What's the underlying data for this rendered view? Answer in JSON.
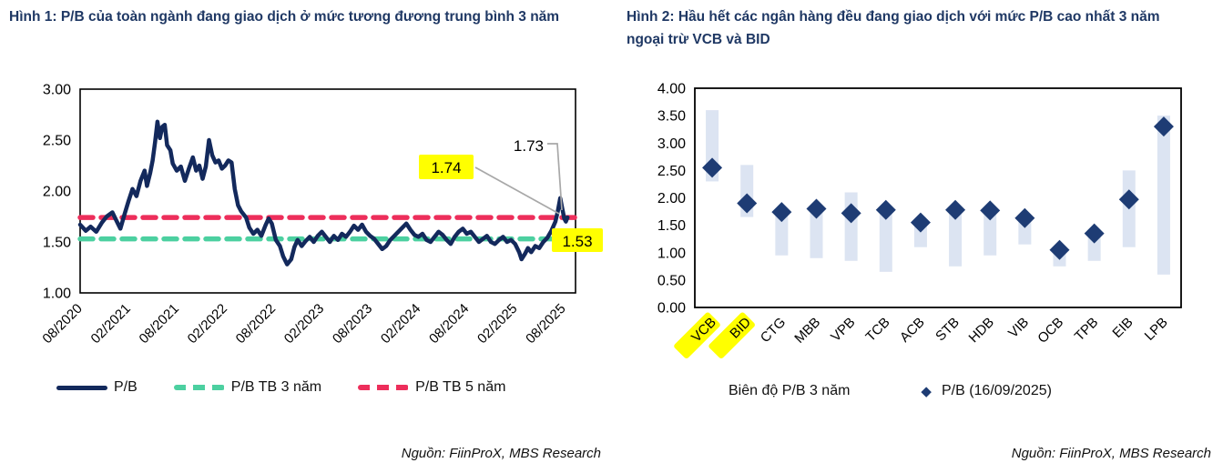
{
  "colors": {
    "title": "#1F3864",
    "pb_line": "#13295C",
    "diamond": "#1E3C74",
    "range_bar": "#DCE4F2",
    "avg3_green": "#4CD0A0",
    "avg5_red": "#ED2E5B",
    "highlight_yellow": "#FFFF00",
    "leader_gray": "#A8A8A8",
    "axis_text": "#000000",
    "plot_border": "#000000"
  },
  "figure1": {
    "title": "Hình 1: P/B của toàn ngành đang giao dịch ở mức tương đương trung bình 3 năm",
    "source": "Nguồn: FiinProX, MBS Research",
    "legend": [
      {
        "label": "P/B",
        "style": "solid-navy"
      },
      {
        "label": "P/B TB 3 năm",
        "style": "dashed-green"
      },
      {
        "label": "P/B TB 5 năm",
        "style": "dashed-red"
      }
    ],
    "annotations": {
      "end_value": "1.73",
      "avg5_value": "1.74",
      "avg3_value": "1.53"
    },
    "chart_data": {
      "type": "line",
      "title": "P/B toàn ngành ngân hàng",
      "x_unit": "months since 08/2020",
      "ylim": [
        1.0,
        3.0
      ],
      "y_tick_labels": [
        "1.00",
        "1.50",
        "2.00",
        "2.50",
        "3.00"
      ],
      "x_ticks": [
        {
          "label": "08/2020",
          "m": 0
        },
        {
          "label": "02/2021",
          "m": 6
        },
        {
          "label": "08/2021",
          "m": 12
        },
        {
          "label": "02/2022",
          "m": 18
        },
        {
          "label": "08/2022",
          "m": 24
        },
        {
          "label": "02/2023",
          "m": 30
        },
        {
          "label": "08/2023",
          "m": 36
        },
        {
          "label": "02/2024",
          "m": 42
        },
        {
          "label": "08/2024",
          "m": 48
        },
        {
          "label": "02/2025",
          "m": 54
        },
        {
          "label": "08/2025",
          "m": 60
        }
      ],
      "avg_3y": 1.53,
      "avg_5y": 1.74,
      "pb_end": 1.73,
      "series": [
        {
          "name": "P/B",
          "points": [
            [
              0,
              1.67
            ],
            [
              0.7,
              1.61
            ],
            [
              1.3,
              1.65
            ],
            [
              2,
              1.6
            ],
            [
              2.7,
              1.69
            ],
            [
              3.3,
              1.75
            ],
            [
              4,
              1.79
            ],
            [
              4.5,
              1.71
            ],
            [
              5,
              1.63
            ],
            [
              5.5,
              1.77
            ],
            [
              6,
              1.9
            ],
            [
              6.5,
              2.02
            ],
            [
              7,
              1.95
            ],
            [
              7.5,
              2.1
            ],
            [
              8,
              2.2
            ],
            [
              8.3,
              2.05
            ],
            [
              8.7,
              2.18
            ],
            [
              9,
              2.3
            ],
            [
              9.3,
              2.48
            ],
            [
              9.6,
              2.68
            ],
            [
              9.9,
              2.52
            ],
            [
              10.2,
              2.63
            ],
            [
              10.5,
              2.65
            ],
            [
              10.8,
              2.45
            ],
            [
              11.2,
              2.4
            ],
            [
              11.5,
              2.27
            ],
            [
              12,
              2.2
            ],
            [
              12.5,
              2.24
            ],
            [
              13,
              2.1
            ],
            [
              13.5,
              2.22
            ],
            [
              14,
              2.33
            ],
            [
              14.4,
              2.2
            ],
            [
              14.8,
              2.25
            ],
            [
              15.2,
              2.12
            ],
            [
              15.6,
              2.24
            ],
            [
              16,
              2.5
            ],
            [
              16.4,
              2.35
            ],
            [
              16.8,
              2.28
            ],
            [
              17.2,
              2.3
            ],
            [
              17.6,
              2.22
            ],
            [
              18,
              2.25
            ],
            [
              18.4,
              2.3
            ],
            [
              18.8,
              2.28
            ],
            [
              19.2,
              2.02
            ],
            [
              19.6,
              1.86
            ],
            [
              20,
              1.8
            ],
            [
              20.6,
              1.74
            ],
            [
              21,
              1.64
            ],
            [
              21.5,
              1.58
            ],
            [
              22,
              1.62
            ],
            [
              22.5,
              1.56
            ],
            [
              23,
              1.66
            ],
            [
              23.4,
              1.73
            ],
            [
              23.8,
              1.68
            ],
            [
              24.3,
              1.52
            ],
            [
              24.8,
              1.46
            ],
            [
              25.2,
              1.36
            ],
            [
              25.7,
              1.28
            ],
            [
              26.2,
              1.33
            ],
            [
              26.6,
              1.45
            ],
            [
              27,
              1.52
            ],
            [
              27.5,
              1.46
            ],
            [
              28,
              1.51
            ],
            [
              28.5,
              1.55
            ],
            [
              29,
              1.5
            ],
            [
              29.5,
              1.56
            ],
            [
              30,
              1.6
            ],
            [
              30.5,
              1.55
            ],
            [
              31,
              1.5
            ],
            [
              31.5,
              1.56
            ],
            [
              32,
              1.52
            ],
            [
              32.5,
              1.58
            ],
            [
              33,
              1.55
            ],
            [
              33.5,
              1.6
            ],
            [
              34,
              1.66
            ],
            [
              34.5,
              1.62
            ],
            [
              35,
              1.67
            ],
            [
              35.5,
              1.6
            ],
            [
              36,
              1.56
            ],
            [
              36.5,
              1.53
            ],
            [
              37,
              1.48
            ],
            [
              37.5,
              1.43
            ],
            [
              38,
              1.46
            ],
            [
              38.5,
              1.52
            ],
            [
              39,
              1.56
            ],
            [
              39.5,
              1.6
            ],
            [
              40,
              1.64
            ],
            [
              40.5,
              1.68
            ],
            [
              41,
              1.62
            ],
            [
              41.5,
              1.57
            ],
            [
              42,
              1.55
            ],
            [
              42.5,
              1.58
            ],
            [
              43,
              1.52
            ],
            [
              43.5,
              1.5
            ],
            [
              44,
              1.55
            ],
            [
              44.5,
              1.6
            ],
            [
              45,
              1.57
            ],
            [
              45.5,
              1.52
            ],
            [
              46,
              1.48
            ],
            [
              46.5,
              1.55
            ],
            [
              47,
              1.6
            ],
            [
              47.5,
              1.63
            ],
            [
              48,
              1.58
            ],
            [
              48.5,
              1.6
            ],
            [
              49,
              1.55
            ],
            [
              49.5,
              1.5
            ],
            [
              50,
              1.53
            ],
            [
              50.5,
              1.56
            ],
            [
              51,
              1.5
            ],
            [
              51.5,
              1.48
            ],
            [
              52,
              1.52
            ],
            [
              52.5,
              1.55
            ],
            [
              53,
              1.5
            ],
            [
              53.5,
              1.52
            ],
            [
              54,
              1.48
            ],
            [
              54.5,
              1.4
            ],
            [
              54.8,
              1.33
            ],
            [
              55.2,
              1.38
            ],
            [
              55.6,
              1.44
            ],
            [
              56,
              1.4
            ],
            [
              56.5,
              1.46
            ],
            [
              57,
              1.44
            ],
            [
              57.5,
              1.5
            ],
            [
              58,
              1.54
            ],
            [
              58.5,
              1.61
            ],
            [
              59,
              1.7
            ],
            [
              59.3,
              1.8
            ],
            [
              59.6,
              1.93
            ],
            [
              59.85,
              1.83
            ],
            [
              60.1,
              1.73
            ],
            [
              60.3,
              1.7
            ],
            [
              60.5,
              1.74
            ]
          ]
        },
        {
          "name": "P/B TB 3 năm",
          "constant": 1.53
        },
        {
          "name": "P/B TB 5 năm",
          "constant": 1.74
        }
      ]
    }
  },
  "figure2": {
    "title": "Hình 2: Hầu hết các ngân hàng đều đang giao dịch với mức P/B cao nhất 3 năm ngoại trừ VCB và BID",
    "source": "Nguồn: FiinProX, MBS Research",
    "legend": [
      {
        "label": "Biên độ P/B 3 năm",
        "style": "range-bar"
      },
      {
        "label": "P/B (16/09/2025)",
        "style": "diamond"
      }
    ],
    "chart_data": {
      "type": "range-bar-with-marker",
      "categories": [
        "VCB",
        "BID",
        "CTG",
        "MBB",
        "VPB",
        "TCB",
        "ACB",
        "STB",
        "HDB",
        "VIB",
        "OCB",
        "TPB",
        "EIB",
        "LPB"
      ],
      "highlighted_categories": [
        "VCB",
        "BID"
      ],
      "ylim": [
        0.0,
        4.0
      ],
      "y_tick_labels": [
        "0.00",
        "0.50",
        "1.00",
        "1.50",
        "2.00",
        "2.50",
        "3.00",
        "3.50",
        "4.00"
      ],
      "series": [
        {
          "name": "Biên độ P/B 3 năm",
          "range_low": [
            2.3,
            1.65,
            0.95,
            0.9,
            0.85,
            0.65,
            1.1,
            0.75,
            0.95,
            1.15,
            0.75,
            0.85,
            1.1,
            0.6
          ],
          "range_high": [
            3.6,
            2.6,
            1.78,
            1.85,
            2.1,
            1.82,
            1.6,
            1.82,
            1.8,
            1.7,
            1.12,
            1.42,
            2.5,
            3.5
          ]
        },
        {
          "name": "P/B (16/09/2025)",
          "values": [
            2.55,
            1.9,
            1.74,
            1.8,
            1.72,
            1.78,
            1.55,
            1.78,
            1.77,
            1.63,
            1.05,
            1.35,
            1.97,
            3.3
          ]
        }
      ]
    }
  }
}
